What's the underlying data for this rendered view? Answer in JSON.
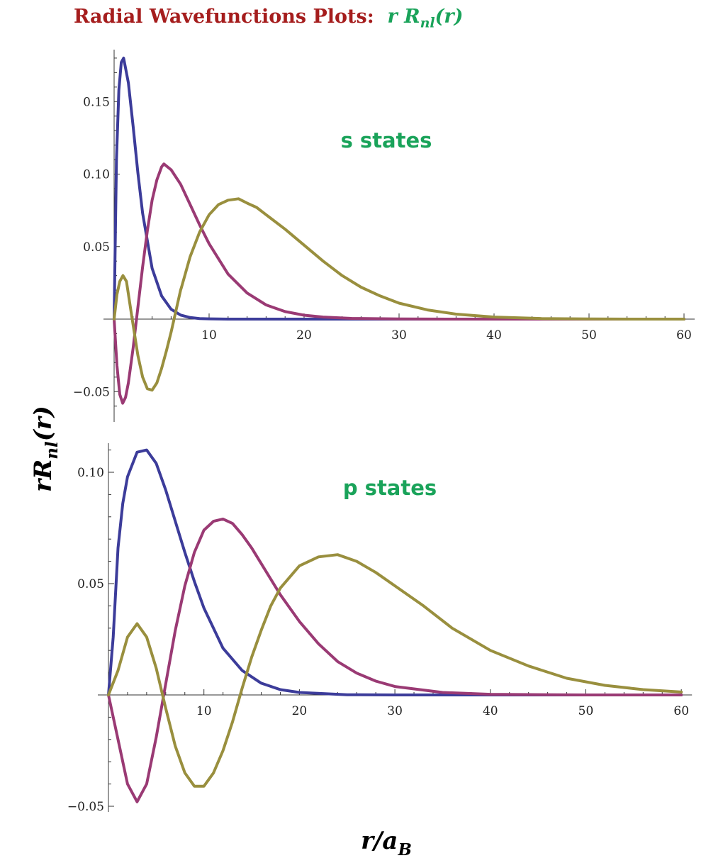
{
  "title": {
    "prefix": "Radial Wavefunctions Plots:",
    "formula_r": "r",
    "formula_R": "R",
    "formula_sub": "nl",
    "formula_arg": "(r)"
  },
  "ylabel": {
    "main": "rR",
    "sub": "nl",
    "arg": "(r)"
  },
  "xlabel": {
    "main": "r/a",
    "sub": "B"
  },
  "colors": {
    "title": "#a51d1d",
    "panel_label": "#1aa35a",
    "blue": "#3c3c9a",
    "magenta": "#9a3a74",
    "olive": "#998f3e"
  },
  "chart_data": [
    {
      "type": "line",
      "label": "s states",
      "xlim": [
        0,
        60
      ],
      "ylim": [
        -0.06,
        0.18
      ],
      "x_ticks": [
        10,
        20,
        30,
        40,
        50,
        60
      ],
      "x_tick_labels": [
        "10",
        "20",
        "30",
        "40",
        "50",
        "60"
      ],
      "y_ticks": [
        -0.05,
        0.05,
        0.1,
        0.15
      ],
      "y_tick_labels": [
        "−0.05",
        "0.05",
        "0.10",
        "0.15"
      ],
      "series": [
        {
          "color": "#3c3c9a",
          "x": [
            0,
            0.25,
            0.5,
            0.75,
            1,
            1.5,
            2,
            2.5,
            3,
            4,
            5,
            6,
            7,
            8,
            9,
            10,
            12,
            14,
            16,
            20,
            30,
            40,
            50,
            60
          ],
          "y": [
            0,
            0.11,
            0.158,
            0.177,
            0.18,
            0.163,
            0.133,
            0.101,
            0.073,
            0.035,
            0.016,
            0.0068,
            0.0028,
            0.0011,
            0.0004,
            0.0002,
            0,
            0,
            0,
            0,
            0,
            0,
            0,
            0
          ]
        },
        {
          "color": "#9a3a74",
          "x": [
            0,
            0.3,
            0.6,
            0.9,
            1.2,
            1.5,
            2,
            2.5,
            3,
            3.5,
            4,
            4.5,
            5,
            5.24,
            6,
            7,
            8,
            9,
            10,
            12,
            14,
            16,
            18,
            20,
            22,
            25,
            30,
            35,
            40,
            50,
            60
          ],
          "y": [
            0,
            -0.032,
            -0.052,
            -0.058,
            -0.054,
            -0.044,
            -0.02,
            0.008,
            0.036,
            0.061,
            0.082,
            0.096,
            0.105,
            0.107,
            0.103,
            0.093,
            0.079,
            0.065,
            0.052,
            0.031,
            0.018,
            0.0098,
            0.0052,
            0.0027,
            0.0014,
            0.0005,
            0.0001,
            0,
            0,
            0,
            0
          ]
        },
        {
          "color": "#998f3e",
          "x": [
            0,
            0.3,
            0.6,
            0.93,
            1.3,
            1.9,
            2.5,
            3,
            3.5,
            4,
            4.5,
            5,
            5.5,
            6,
            7,
            7.1,
            8,
            9,
            10,
            11,
            12,
            13.1,
            14,
            15,
            16,
            18,
            20,
            22,
            24,
            26,
            28,
            30,
            33,
            36,
            40,
            45,
            50,
            55,
            60
          ],
          "y": [
            0,
            0.017,
            0.026,
            0.03,
            0.026,
            0.0,
            -0.025,
            -0.04,
            -0.048,
            -0.049,
            -0.044,
            -0.034,
            -0.022,
            -0.009,
            0.02,
            0.022,
            0.043,
            0.06,
            0.072,
            0.079,
            0.082,
            0.083,
            0.08,
            0.077,
            0.072,
            0.062,
            0.051,
            0.04,
            0.03,
            0.022,
            0.016,
            0.011,
            0.0063,
            0.0034,
            0.0014,
            0.0004,
            0.0001,
            0,
            0
          ]
        }
      ]
    },
    {
      "type": "line",
      "label": "p states",
      "xlim": [
        0,
        60
      ],
      "ylim": [
        -0.05,
        0.11
      ],
      "x_ticks": [
        10,
        20,
        30,
        40,
        50,
        60
      ],
      "x_tick_labels": [
        "10",
        "20",
        "30",
        "40",
        "50",
        "60"
      ],
      "y_ticks": [
        -0.05,
        0.05,
        0.1
      ],
      "y_tick_labels": [
        "−0.05",
        "0.05",
        "0.10"
      ],
      "series": [
        {
          "color": "#3c3c9a",
          "x": [
            0,
            0.5,
            1,
            1.5,
            2,
            3,
            4,
            5,
            6,
            7,
            8,
            9,
            10,
            12,
            14,
            16,
            18,
            20,
            25,
            30,
            40,
            50,
            60
          ],
          "y": [
            0,
            0.026,
            0.066,
            0.086,
            0.098,
            0.109,
            0.11,
            0.104,
            0.092,
            0.078,
            0.064,
            0.051,
            0.039,
            0.021,
            0.011,
            0.0053,
            0.0024,
            0.0011,
            0.0001,
            0,
            0,
            0,
            0
          ]
        },
        {
          "color": "#9a3a74",
          "x": [
            0,
            1,
            2,
            3,
            4,
            5,
            6,
            7,
            8,
            9,
            10,
            11,
            12,
            13,
            14,
            15,
            16,
            18,
            20,
            22,
            24,
            26,
            28,
            30,
            35,
            40,
            50,
            60
          ],
          "y": [
            0,
            -0.02,
            -0.04,
            -0.048,
            -0.04,
            -0.019,
            0.005,
            0.029,
            0.049,
            0.064,
            0.074,
            0.078,
            0.079,
            0.077,
            0.072,
            0.066,
            0.059,
            0.045,
            0.033,
            0.023,
            0.015,
            0.0098,
            0.0062,
            0.0038,
            0.0011,
            0.0003,
            0,
            0
          ]
        },
        {
          "color": "#998f3e",
          "x": [
            0,
            1,
            2,
            3,
            4,
            5,
            6,
            7,
            8,
            9,
            10,
            11,
            12,
            13,
            14,
            15,
            16,
            17,
            18,
            20,
            22,
            24,
            26,
            28,
            30,
            33,
            36,
            40,
            44,
            48,
            52,
            56,
            60
          ],
          "y": [
            0,
            0.011,
            0.026,
            0.032,
            0.026,
            0.012,
            -0.006,
            -0.023,
            -0.035,
            -0.041,
            -0.041,
            -0.035,
            -0.025,
            -0.012,
            0.003,
            0.017,
            0.029,
            0.04,
            0.048,
            0.058,
            0.062,
            0.063,
            0.06,
            0.055,
            0.049,
            0.04,
            0.03,
            0.02,
            0.013,
            0.0075,
            0.0043,
            0.0024,
            0.0013
          ]
        }
      ]
    }
  ]
}
